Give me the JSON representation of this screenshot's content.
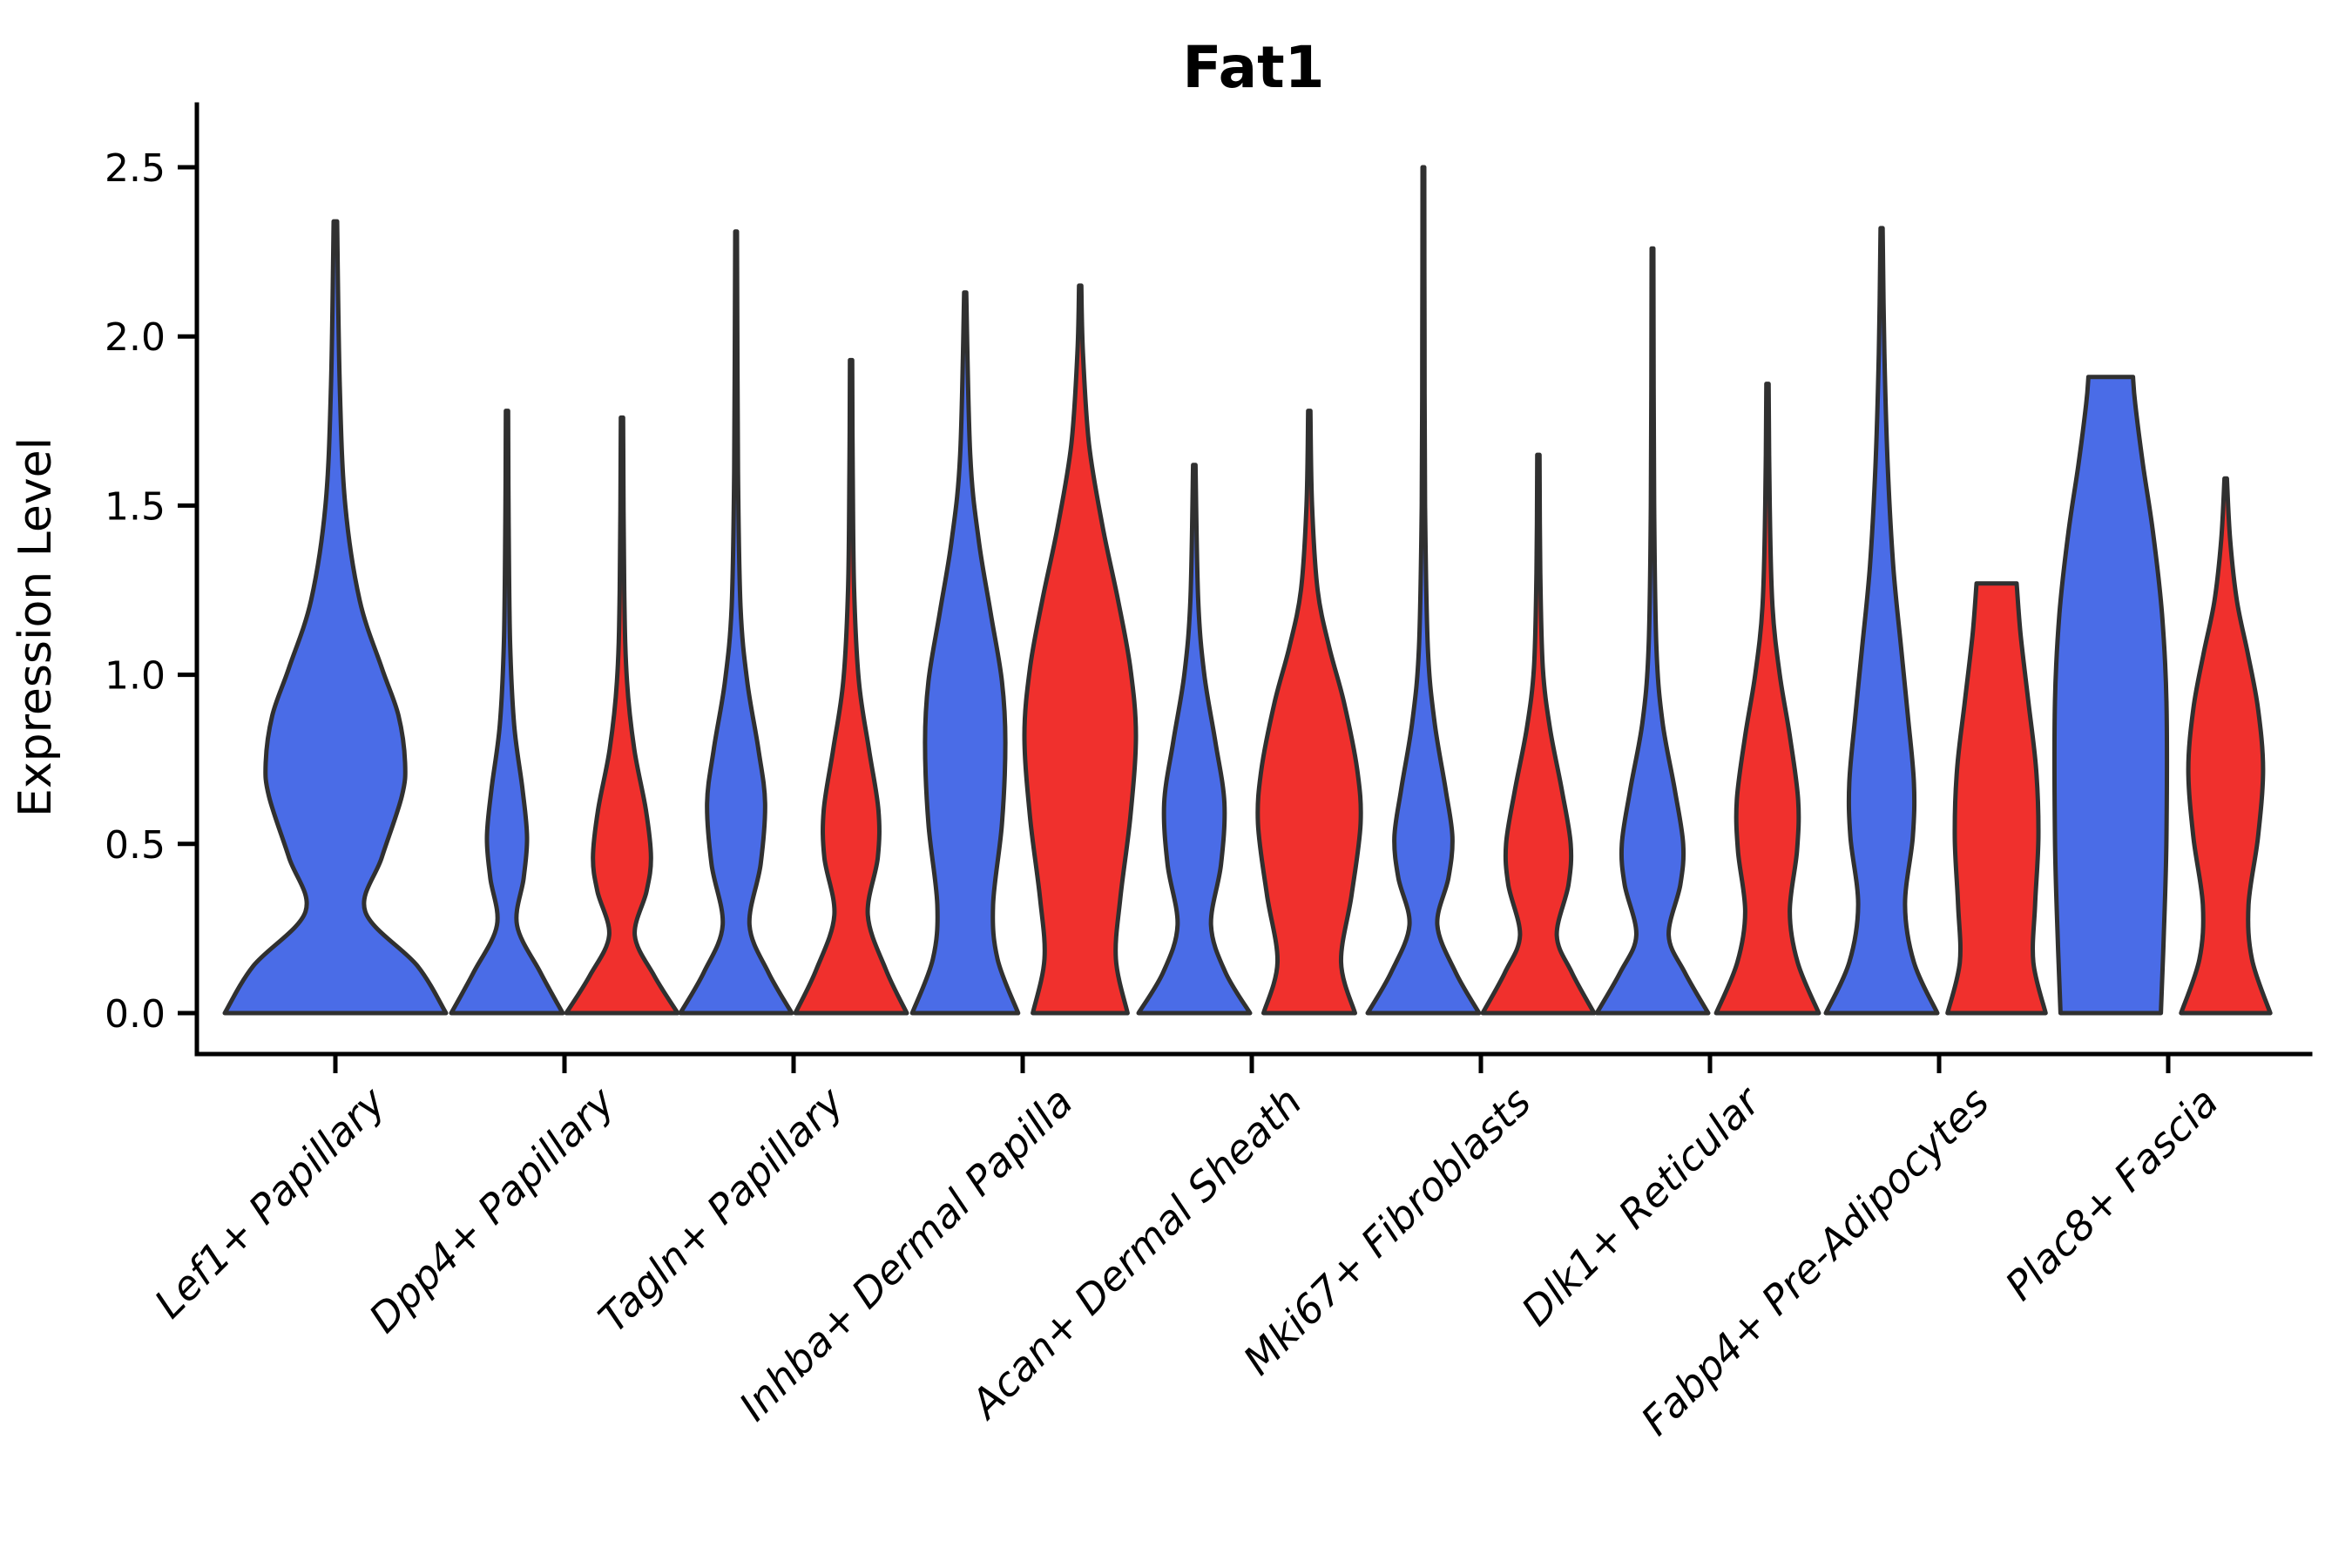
{
  "title": "Fat1",
  "axes": {
    "y_label": "Expression Level",
    "y_ticks": [
      {
        "label": "0.0",
        "value": 0.0
      },
      {
        "label": "0.5",
        "value": 0.5
      },
      {
        "label": "1.0",
        "value": 1.0
      },
      {
        "label": "1.5",
        "value": 1.5
      },
      {
        "label": "2.0",
        "value": 2.0
      },
      {
        "label": "2.5",
        "value": 2.5
      }
    ]
  },
  "colors": {
    "blue": "#4A6CE7",
    "red": "#F0302D",
    "outline": "#303030",
    "axis": "#000000"
  },
  "chart_data": {
    "type": "violin",
    "title": "Fat1",
    "xlabel": "",
    "ylabel": "Expression Level",
    "ylim": [
      0,
      2.5
    ],
    "grid": false,
    "legend_position": "none",
    "categories": [
      "Lef1+ Papillary",
      "Dpp4+ Papillary",
      "Tagln+ Papillary",
      "Inhba+ Dermal Papilla",
      "Acan+ Dermal Sheath",
      "Mki67+ Fibroblasts",
      "Dlk1+ Reticular",
      "Fabp4+ Pre-Adipocytes",
      "Plac8+ Fascia"
    ],
    "series": [
      {
        "name": "blue",
        "color": "#4A6CE7"
      },
      {
        "name": "red",
        "color": "#F0302D"
      }
    ],
    "violins": [
      {
        "category_index": 0,
        "series": "blue",
        "solo": true,
        "max_expression": 2.34,
        "flat_top": false,
        "profile": [
          [
            0,
            1.0
          ],
          [
            0.14,
            0.74
          ],
          [
            0.3,
            0.27
          ],
          [
            0.46,
            0.42
          ],
          [
            0.64,
            0.6
          ],
          [
            0.74,
            0.63
          ],
          [
            0.88,
            0.57
          ],
          [
            1.02,
            0.42
          ],
          [
            1.22,
            0.22
          ],
          [
            1.5,
            0.09
          ],
          [
            1.85,
            0.04
          ],
          [
            2.34,
            0.016
          ]
        ]
      },
      {
        "category_index": 1,
        "series": "blue",
        "solo": false,
        "max_expression": 1.78,
        "flat_top": false,
        "profile": [
          [
            0,
            1.0
          ],
          [
            0.12,
            0.6
          ],
          [
            0.26,
            0.18
          ],
          [
            0.4,
            0.3
          ],
          [
            0.52,
            0.36
          ],
          [
            0.66,
            0.28
          ],
          [
            0.85,
            0.13
          ],
          [
            1.1,
            0.055
          ],
          [
            1.45,
            0.03
          ],
          [
            1.78,
            0.02
          ]
        ]
      },
      {
        "category_index": 1,
        "series": "red",
        "solo": false,
        "max_expression": 1.76,
        "flat_top": false,
        "profile": [
          [
            0,
            1.0
          ],
          [
            0.11,
            0.58
          ],
          [
            0.23,
            0.23
          ],
          [
            0.36,
            0.44
          ],
          [
            0.46,
            0.52
          ],
          [
            0.6,
            0.43
          ],
          [
            0.78,
            0.22
          ],
          [
            0.98,
            0.09
          ],
          [
            1.25,
            0.04
          ],
          [
            1.76,
            0.02
          ]
        ]
      },
      {
        "category_index": 2,
        "series": "blue",
        "solo": false,
        "max_expression": 2.31,
        "flat_top": false,
        "profile": [
          [
            0,
            1.0
          ],
          [
            0.12,
            0.58
          ],
          [
            0.26,
            0.24
          ],
          [
            0.44,
            0.44
          ],
          [
            0.62,
            0.52
          ],
          [
            0.78,
            0.4
          ],
          [
            0.98,
            0.2
          ],
          [
            1.2,
            0.08
          ],
          [
            1.6,
            0.035
          ],
          [
            2.31,
            0.016
          ]
        ]
      },
      {
        "category_index": 2,
        "series": "red",
        "solo": false,
        "max_expression": 1.93,
        "flat_top": false,
        "profile": [
          [
            0,
            1.0
          ],
          [
            0.13,
            0.62
          ],
          [
            0.29,
            0.3
          ],
          [
            0.46,
            0.48
          ],
          [
            0.6,
            0.49
          ],
          [
            0.78,
            0.32
          ],
          [
            0.98,
            0.14
          ],
          [
            1.25,
            0.055
          ],
          [
            1.6,
            0.03
          ],
          [
            1.93,
            0.02
          ]
        ]
      },
      {
        "category_index": 3,
        "series": "blue",
        "solo": false,
        "max_expression": 2.13,
        "flat_top": false,
        "profile": [
          [
            0,
            0.95
          ],
          [
            0.16,
            0.58
          ],
          [
            0.32,
            0.5
          ],
          [
            0.56,
            0.66
          ],
          [
            0.8,
            0.72
          ],
          [
            0.98,
            0.66
          ],
          [
            1.18,
            0.46
          ],
          [
            1.4,
            0.24
          ],
          [
            1.65,
            0.09
          ],
          [
            2.13,
            0.018
          ]
        ]
      },
      {
        "category_index": 3,
        "series": "red",
        "solo": false,
        "max_expression": 2.15,
        "flat_top": false,
        "profile": [
          [
            0,
            0.85
          ],
          [
            0.16,
            0.64
          ],
          [
            0.34,
            0.72
          ],
          [
            0.58,
            0.9
          ],
          [
            0.82,
            1.0
          ],
          [
            1.02,
            0.9
          ],
          [
            1.22,
            0.68
          ],
          [
            1.44,
            0.4
          ],
          [
            1.68,
            0.16
          ],
          [
            1.95,
            0.05
          ],
          [
            2.15,
            0.02
          ]
        ]
      },
      {
        "category_index": 4,
        "series": "blue",
        "solo": false,
        "max_expression": 1.62,
        "flat_top": false,
        "profile": [
          [
            0,
            1.0
          ],
          [
            0.12,
            0.56
          ],
          [
            0.26,
            0.3
          ],
          [
            0.44,
            0.48
          ],
          [
            0.62,
            0.54
          ],
          [
            0.8,
            0.38
          ],
          [
            1.0,
            0.18
          ],
          [
            1.22,
            0.07
          ],
          [
            1.62,
            0.022
          ]
        ]
      },
      {
        "category_index": 4,
        "series": "red",
        "solo": false,
        "max_expression": 1.78,
        "flat_top": false,
        "profile": [
          [
            0,
            0.82
          ],
          [
            0.15,
            0.57
          ],
          [
            0.35,
            0.76
          ],
          [
            0.56,
            0.92
          ],
          [
            0.72,
            0.86
          ],
          [
            0.92,
            0.62
          ],
          [
            1.08,
            0.36
          ],
          [
            1.25,
            0.15
          ],
          [
            1.5,
            0.05
          ],
          [
            1.78,
            0.02
          ]
        ]
      },
      {
        "category_index": 5,
        "series": "blue",
        "solo": false,
        "max_expression": 2.5,
        "flat_top": false,
        "profile": [
          [
            0,
            1.0
          ],
          [
            0.12,
            0.58
          ],
          [
            0.26,
            0.25
          ],
          [
            0.4,
            0.45
          ],
          [
            0.52,
            0.52
          ],
          [
            0.66,
            0.4
          ],
          [
            0.86,
            0.2
          ],
          [
            1.08,
            0.08
          ],
          [
            1.5,
            0.03
          ],
          [
            2.0,
            0.02
          ],
          [
            2.5,
            0.015
          ]
        ]
      },
      {
        "category_index": 5,
        "series": "red",
        "solo": false,
        "max_expression": 1.65,
        "flat_top": false,
        "profile": [
          [
            0,
            1.0
          ],
          [
            0.12,
            0.6
          ],
          [
            0.23,
            0.33
          ],
          [
            0.38,
            0.54
          ],
          [
            0.5,
            0.58
          ],
          [
            0.66,
            0.42
          ],
          [
            0.84,
            0.21
          ],
          [
            1.02,
            0.08
          ],
          [
            1.3,
            0.035
          ],
          [
            1.65,
            0.02
          ]
        ]
      },
      {
        "category_index": 6,
        "series": "blue",
        "solo": false,
        "max_expression": 2.26,
        "flat_top": false,
        "profile": [
          [
            0,
            1.0
          ],
          [
            0.12,
            0.58
          ],
          [
            0.23,
            0.29
          ],
          [
            0.38,
            0.5
          ],
          [
            0.5,
            0.55
          ],
          [
            0.66,
            0.4
          ],
          [
            0.86,
            0.18
          ],
          [
            1.08,
            0.07
          ],
          [
            1.5,
            0.03
          ],
          [
            2.26,
            0.015
          ]
        ]
      },
      {
        "category_index": 6,
        "series": "red",
        "solo": false,
        "max_expression": 1.86,
        "flat_top": false,
        "profile": [
          [
            0,
            0.92
          ],
          [
            0.15,
            0.54
          ],
          [
            0.3,
            0.4
          ],
          [
            0.48,
            0.53
          ],
          [
            0.63,
            0.55
          ],
          [
            0.82,
            0.4
          ],
          [
            1.0,
            0.22
          ],
          [
            1.2,
            0.09
          ],
          [
            1.5,
            0.04
          ],
          [
            1.86,
            0.02
          ]
        ]
      },
      {
        "category_index": 7,
        "series": "blue",
        "solo": false,
        "max_expression": 2.32,
        "flat_top": false,
        "profile": [
          [
            0,
            1.0
          ],
          [
            0.15,
            0.58
          ],
          [
            0.32,
            0.42
          ],
          [
            0.52,
            0.56
          ],
          [
            0.68,
            0.58
          ],
          [
            0.88,
            0.47
          ],
          [
            1.08,
            0.35
          ],
          [
            1.32,
            0.21
          ],
          [
            1.62,
            0.11
          ],
          [
            1.95,
            0.05
          ],
          [
            2.32,
            0.018
          ]
        ]
      },
      {
        "category_index": 7,
        "series": "red",
        "solo": false,
        "max_expression": 1.27,
        "flat_top": true,
        "profile": [
          [
            0,
            0.88
          ],
          [
            0.15,
            0.66
          ],
          [
            0.32,
            0.69
          ],
          [
            0.52,
            0.75
          ],
          [
            0.72,
            0.71
          ],
          [
            0.92,
            0.57
          ],
          [
            1.12,
            0.43
          ],
          [
            1.27,
            0.36
          ]
        ]
      },
      {
        "category_index": 8,
        "series": "blue",
        "solo": false,
        "max_expression": 1.88,
        "flat_top": true,
        "profile": [
          [
            0,
            0.9
          ],
          [
            0.22,
            0.95
          ],
          [
            0.52,
            1.0
          ],
          [
            0.92,
            1.0
          ],
          [
            1.18,
            0.92
          ],
          [
            1.42,
            0.76
          ],
          [
            1.62,
            0.58
          ],
          [
            1.8,
            0.44
          ],
          [
            1.88,
            0.4
          ]
        ]
      },
      {
        "category_index": 8,
        "series": "red",
        "solo": false,
        "max_expression": 1.58,
        "flat_top": false,
        "profile": [
          [
            0,
            0.8
          ],
          [
            0.16,
            0.47
          ],
          [
            0.32,
            0.41
          ],
          [
            0.52,
            0.58
          ],
          [
            0.72,
            0.67
          ],
          [
            0.9,
            0.58
          ],
          [
            1.06,
            0.4
          ],
          [
            1.22,
            0.2
          ],
          [
            1.4,
            0.08
          ],
          [
            1.58,
            0.022
          ]
        ]
      }
    ]
  }
}
